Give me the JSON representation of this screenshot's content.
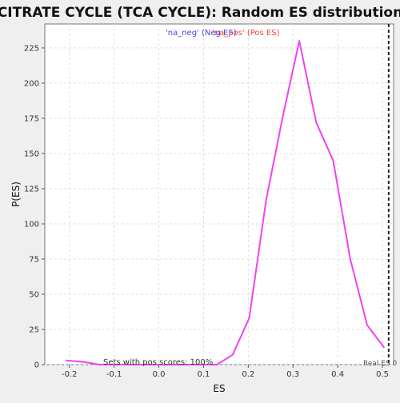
{
  "chart_data": {
    "type": "line",
    "title": "CITRATE CYCLE (TCA CYCLE): Random ES distribution",
    "xlabel": "ES",
    "ylabel": "P(ES)",
    "xlim": [
      -0.255,
      0.525
    ],
    "ylim": [
      0,
      242
    ],
    "xticks": [
      -0.2,
      -0.1,
      0.0,
      0.1,
      0.2,
      0.3,
      0.4,
      0.5
    ],
    "xtick_labels": [
      "-0.2",
      "-0.1",
      "0.0",
      "0.1",
      "0.2",
      "0.3",
      "0.4",
      "0.5"
    ],
    "yticks": [
      0,
      25,
      50,
      75,
      100,
      125,
      150,
      175,
      200,
      225
    ],
    "ytick_labels": [
      "0",
      "25",
      "50",
      "75",
      "100",
      "125",
      "150",
      "175",
      "200",
      "225"
    ],
    "grid": true,
    "series": [
      {
        "color": "#ee44ee",
        "x": [
          -0.208,
          -0.17,
          -0.132,
          -0.095,
          -0.057,
          -0.019,
          0.019,
          0.057,
          0.094,
          0.13,
          0.165,
          0.202,
          0.24,
          0.277,
          0.314,
          0.352,
          0.39,
          0.428,
          0.466,
          0.504
        ],
        "y": [
          3,
          2,
          0,
          0,
          0,
          0,
          0,
          0,
          0,
          0,
          7,
          33,
          117,
          176,
          230,
          172,
          145,
          75,
          28,
          12
        ]
      }
    ],
    "real_es": {
      "x": 0.514,
      "label": "Real ES 0"
    },
    "legend": {
      "placement": "top-center",
      "entries": [
        {
          "label": "'na_neg' (Neg ES)",
          "color": "#4444ee"
        },
        {
          "label": "'na_pos' (Pos ES)",
          "color": "#ee4444"
        }
      ]
    },
    "annotations": {
      "sets_text": "Sets with pos scores: 100%"
    }
  }
}
